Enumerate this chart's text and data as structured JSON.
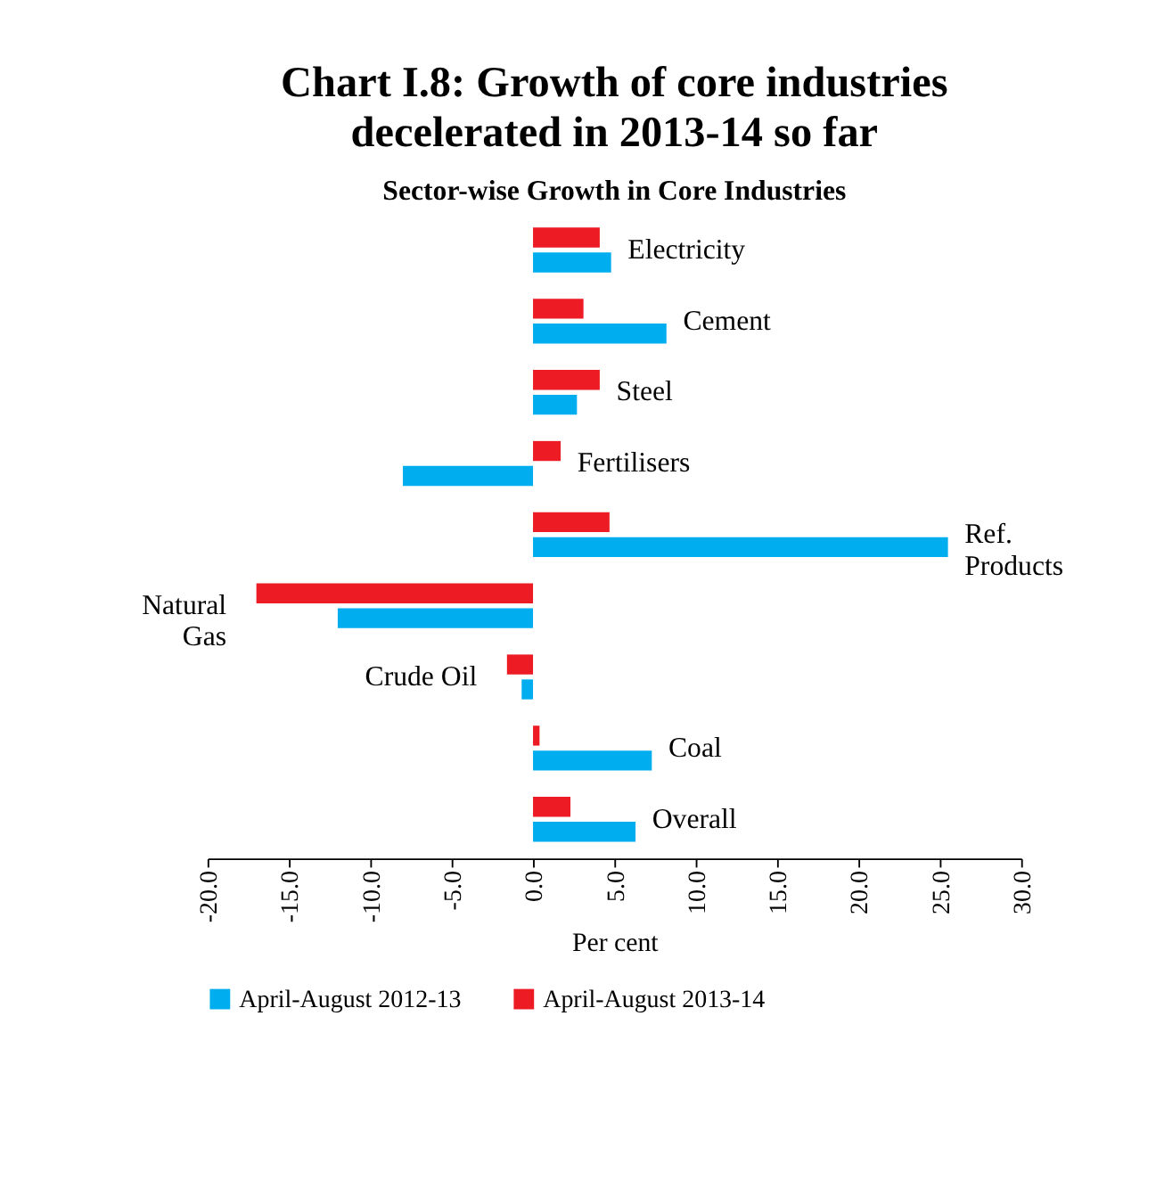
{
  "chart_data": {
    "type": "bar",
    "orientation": "horizontal",
    "title": "Chart I.8: Growth of core industries decelerated in 2013-14 so far",
    "subtitle": "Sector-wise Growth in Core Industries",
    "xlabel": "Per cent",
    "categories": [
      "Electricity",
      "Cement",
      "Steel",
      "Fertilisers",
      "Ref. Products",
      "Natural Gas",
      "Crude Oil",
      "Coal",
      "Overall"
    ],
    "series": [
      {
        "name": "April-August 2012-13",
        "color": "#00aeef",
        "values": [
          4.8,
          8.2,
          2.7,
          -8.0,
          25.5,
          -12.0,
          -0.7,
          7.3,
          6.3
        ]
      },
      {
        "name": "April-August 2013-14",
        "color": "#ed1c24",
        "values": [
          4.1,
          3.1,
          4.1,
          1.7,
          4.7,
          -17.0,
          -1.6,
          0.4,
          2.3
        ]
      }
    ],
    "xlim": [
      -20,
      30
    ],
    "xticks": [
      {
        "value": -20,
        "label": "-20.0"
      },
      {
        "value": -15,
        "label": "-15.0"
      },
      {
        "value": -10,
        "label": "-10.0"
      },
      {
        "value": -5,
        "label": "-5.0"
      },
      {
        "value": 0,
        "label": "0.0"
      },
      {
        "value": 5,
        "label": "5.0"
      },
      {
        "value": 10,
        "label": "10.0"
      },
      {
        "value": 15,
        "label": "15.0"
      },
      {
        "value": 20,
        "label": "20.0"
      },
      {
        "value": 25,
        "label": "25.0"
      },
      {
        "value": 30,
        "label": "30.0"
      }
    ],
    "grid": false,
    "legend": "bottom"
  }
}
